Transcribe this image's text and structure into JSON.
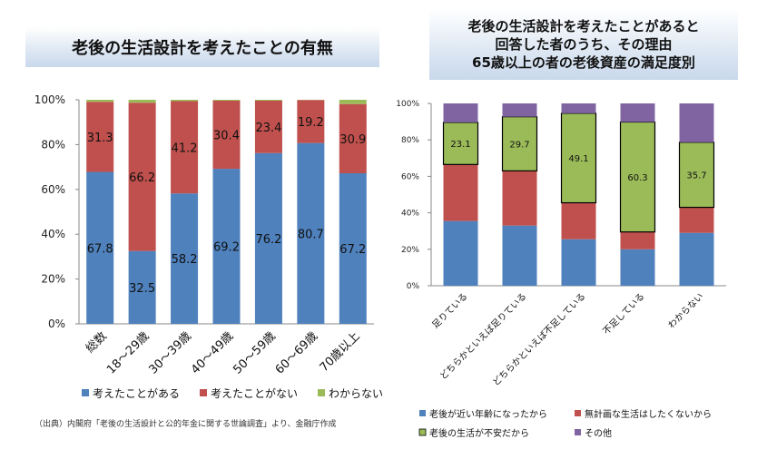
{
  "left_chart": {
    "title": "老後の生活設計を考えたことの有無",
    "source": "（出典）内閣府「老後の生活設計と公的年金に関する世論調査」より、金融庁作成",
    "colors": {
      "considered": "#4f81bd",
      "not_considered": "#c0504d",
      "unknown": "#9bbb59"
    },
    "chart_data": {
      "type": "bar",
      "stacked": true,
      "categories": [
        "総数",
        "18～29歳",
        "30～39歳",
        "40～49歳",
        "50～59歳",
        "60～69歳",
        "70歳以上"
      ],
      "series": [
        {
          "name": "考えたことがある",
          "values": [
            67.8,
            32.5,
            58.2,
            69.2,
            76.2,
            80.7,
            67.2
          ]
        },
        {
          "name": "考えたことがない",
          "values": [
            31.3,
            66.2,
            41.2,
            30.4,
            23.4,
            19.2,
            30.9
          ]
        },
        {
          "name": "わからない",
          "values": [
            0.9,
            1.3,
            0.6,
            0.4,
            0.4,
            0.1,
            1.9
          ]
        }
      ],
      "data_labels": [
        [
          "67.8",
          "32.5",
          "58.2",
          "69.2",
          "76.2",
          "80.7",
          "67.2"
        ],
        [
          "31.3",
          "66.2",
          "41.2",
          "30.4",
          "23.4",
          "19.2",
          "30.9"
        ]
      ],
      "yticks": [
        "0%",
        "20%",
        "40%",
        "60%",
        "80%",
        "100%"
      ],
      "ylim": [
        0,
        100
      ],
      "legend": "bottom"
    }
  },
  "right_chart": {
    "title_lines": [
      "老後の生活設計を考えたことがあると",
      "回答した者のうち、その理由",
      "65歳以上の者の老後資産の満足度別"
    ],
    "colors": {
      "age": "#4f81bd",
      "plan": "#c0504d",
      "anxiety": "#9bbb59",
      "other": "#8064a2"
    },
    "chart_data": {
      "type": "bar",
      "stacked": true,
      "categories": [
        "足りている",
        "どちらかといえば足りている",
        "どちらかといえば不足している",
        "不足している",
        "わからない"
      ],
      "series": [
        {
          "name": "老後が近い年齢になったから",
          "values": [
            35.5,
            33.0,
            25.5,
            20.0,
            29.0
          ]
        },
        {
          "name": "無計画な生活はしたくないから",
          "values": [
            31.0,
            30.0,
            20.0,
            9.5,
            14.0
          ]
        },
        {
          "name": "老後の生活が不安だから",
          "values": [
            23.1,
            29.7,
            49.1,
            60.3,
            35.7
          ]
        },
        {
          "name": "その他",
          "values": [
            10.4,
            7.3,
            5.4,
            10.2,
            21.3
          ]
        }
      ],
      "data_labels": [
        "23.1",
        "29.7",
        "49.1",
        "60.3",
        "35.7"
      ],
      "yticks": [
        "0%",
        "20%",
        "40%",
        "60%",
        "80%",
        "100%"
      ],
      "ylim": [
        0,
        100
      ],
      "legend": "bottom"
    }
  }
}
